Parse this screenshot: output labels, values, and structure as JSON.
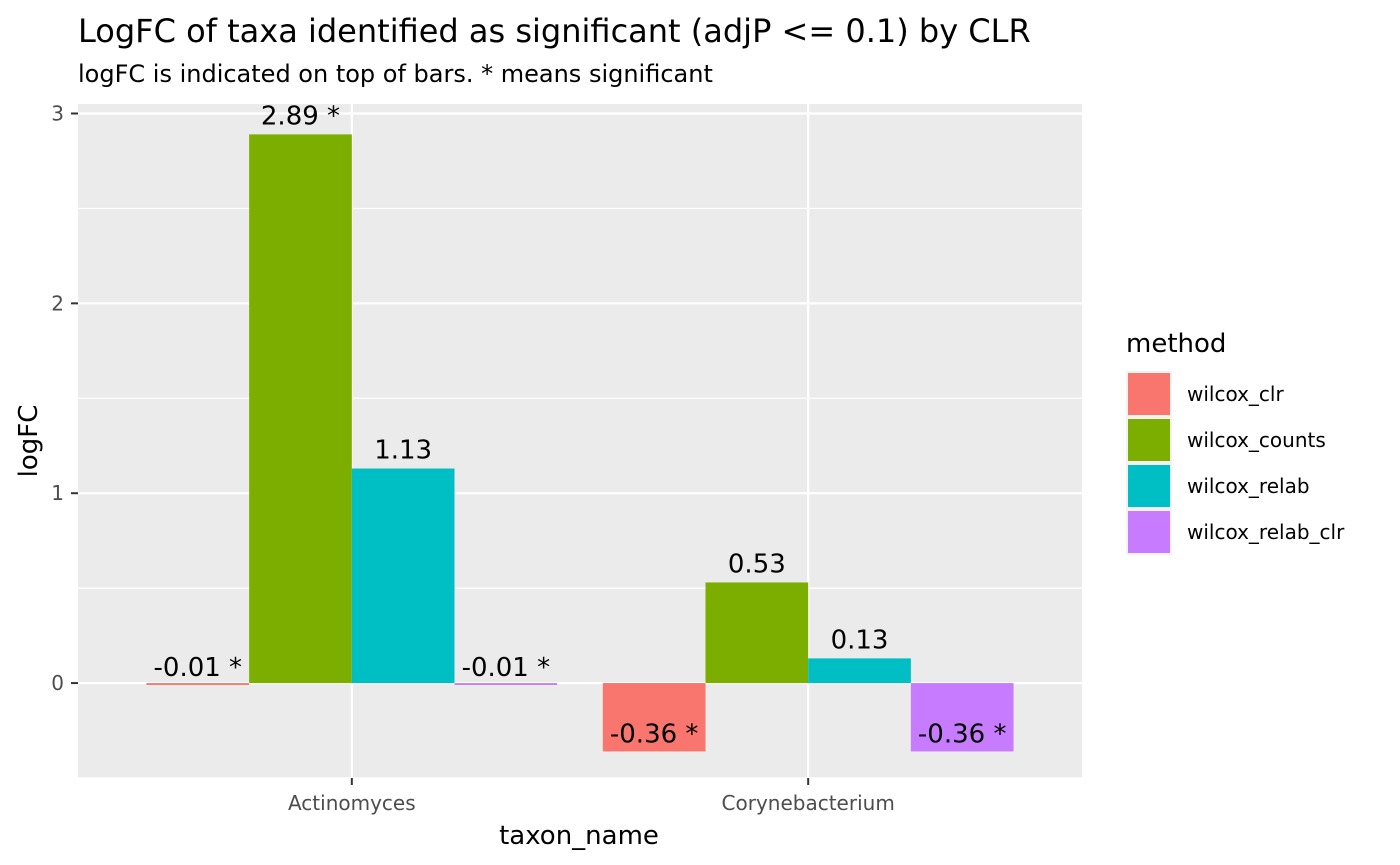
{
  "chart_data": {
    "type": "bar",
    "title": "LogFC of taxa identified as significant (adjP <= 0.1) by CLR",
    "subtitle": "logFC is indicated on top of bars. * means significant",
    "xlabel": "taxon_name",
    "ylabel": "logFC",
    "categories": [
      "Actinomyces",
      "Corynebacterium"
    ],
    "ylim": [
      -0.5,
      3.05
    ],
    "yticks": [
      0,
      1,
      2,
      3
    ],
    "grid": true,
    "legend": {
      "title": "method",
      "position": "right"
    },
    "series": [
      {
        "name": "wilcox_clr",
        "color": "#F8766D",
        "values": [
          -0.01,
          -0.36
        ],
        "labels": [
          "-0.01 *",
          "-0.36 *"
        ]
      },
      {
        "name": "wilcox_counts",
        "color": "#7CAE00",
        "values": [
          2.89,
          0.53
        ],
        "labels": [
          "2.89 *",
          "0.53"
        ]
      },
      {
        "name": "wilcox_relab",
        "color": "#00BFC4",
        "values": [
          1.13,
          0.13
        ],
        "labels": [
          "1.13",
          "0.13"
        ]
      },
      {
        "name": "wilcox_relab_clr",
        "color": "#C77CFF",
        "values": [
          -0.01,
          -0.36
        ],
        "labels": [
          "-0.01 *",
          "-0.36 *"
        ]
      }
    ]
  }
}
